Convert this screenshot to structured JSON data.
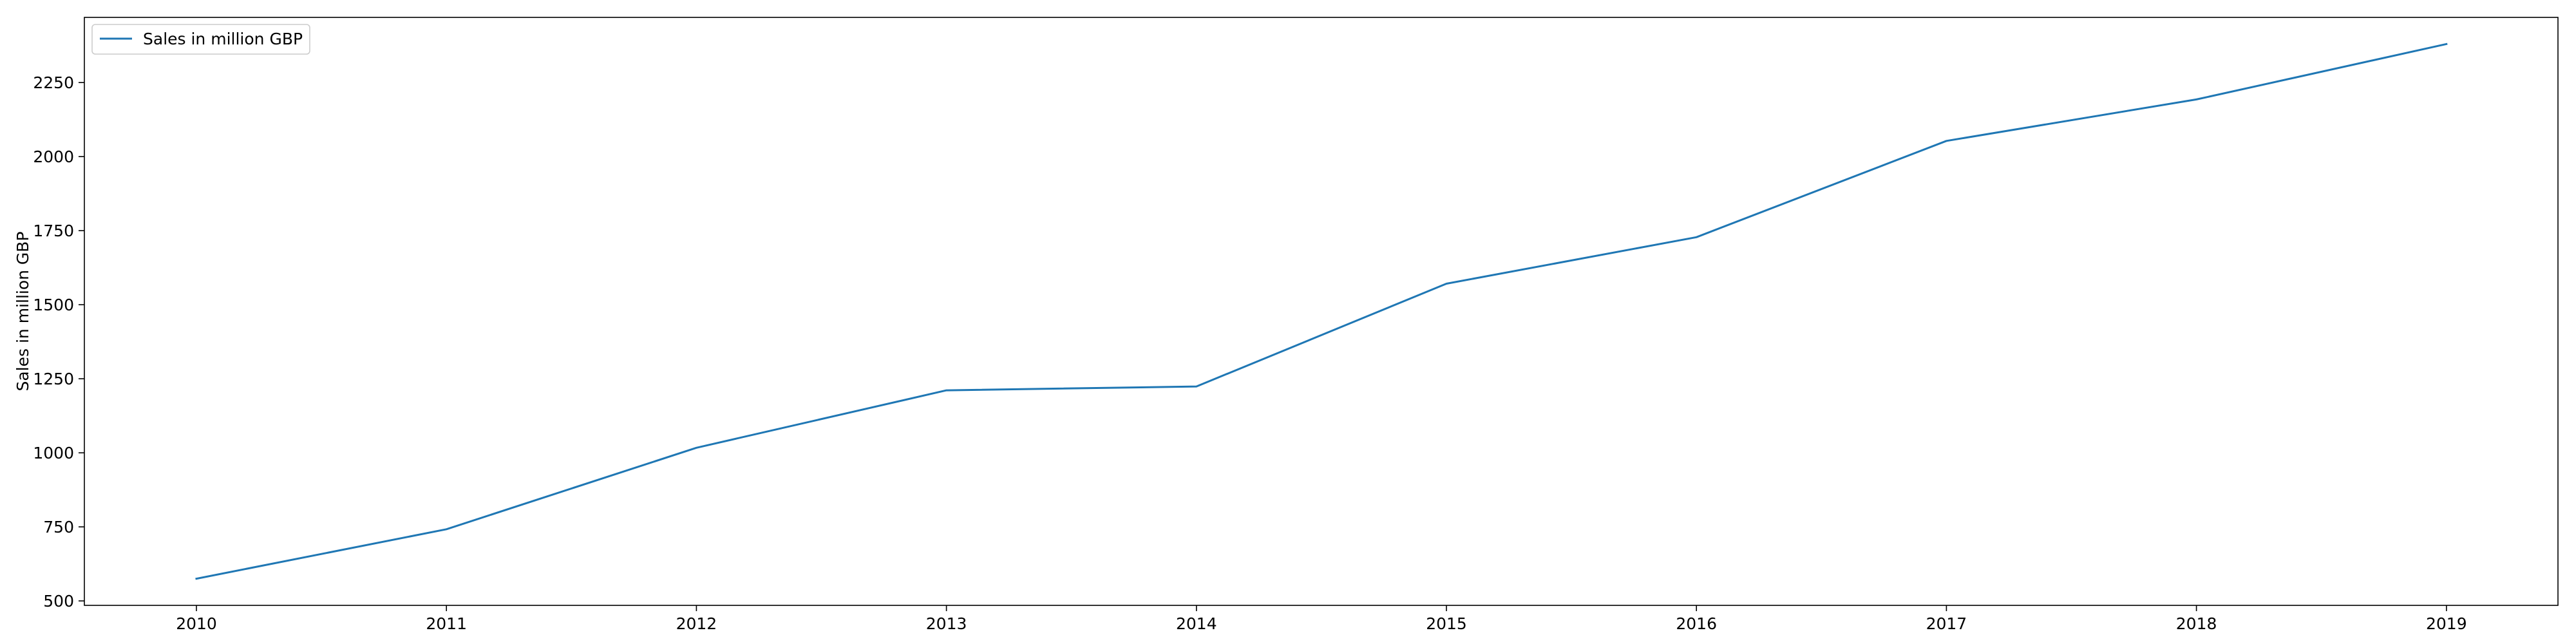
{
  "chart_data": {
    "type": "line",
    "title": "",
    "xlabel": "",
    "ylabel": "Sales in million GBP",
    "categories": [
      "2010",
      "2011",
      "2012",
      "2013",
      "2014",
      "2015",
      "2016",
      "2017",
      "2018",
      "2019"
    ],
    "series": [
      {
        "name": "Sales in million GBP",
        "values": [
          575,
          742,
          1017,
          1211,
          1224,
          1571,
          1728,
          2053,
          2193,
          2380
        ],
        "color": "#1f77b4"
      }
    ],
    "ylim": [
      485,
      2470
    ],
    "yticks": [
      500,
      750,
      1000,
      1250,
      1500,
      1750,
      2000,
      2250
    ],
    "grid": false,
    "legend_position": "top-left"
  }
}
